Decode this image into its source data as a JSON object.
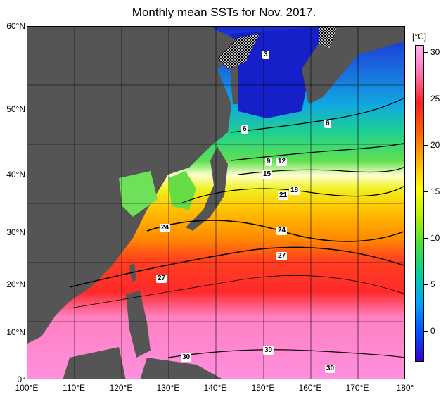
{
  "title": "Monthly mean SSTs for Nov. 2017.",
  "lat_labels": [
    "60°N",
    "50°N",
    "40°N",
    "30°N",
    "20°N",
    "10°N",
    "0°"
  ],
  "lon_labels": [
    "100°E",
    "110°E",
    "120°E",
    "130°E",
    "140°E",
    "150°E",
    "160°E",
    "170°E",
    "180°"
  ],
  "colorbar": {
    "unit": "[°C]",
    "ticks": [
      "30",
      "25",
      "20",
      "15",
      "10",
      "5",
      "0"
    ],
    "min": -3,
    "max": 31,
    "colors": [
      "#3a00c8",
      "#0050ff",
      "#00a0ff",
      "#00d0a0",
      "#40e040",
      "#b0f000",
      "#ffff00",
      "#ffb000",
      "#ff6000",
      "#ff2020",
      "#ff70b0",
      "#ffb0f0"
    ]
  },
  "contour_labels": [
    "3",
    "6",
    "6",
    "9",
    "12",
    "15",
    "18",
    "21",
    "24",
    "24",
    "27",
    "27",
    "30",
    "30",
    "30"
  ],
  "colors": {
    "land": "#555555",
    "ice_hatch": "#ffffff",
    "warm_pool": "#ff90d8",
    "kuroshio": "#ff3030"
  }
}
